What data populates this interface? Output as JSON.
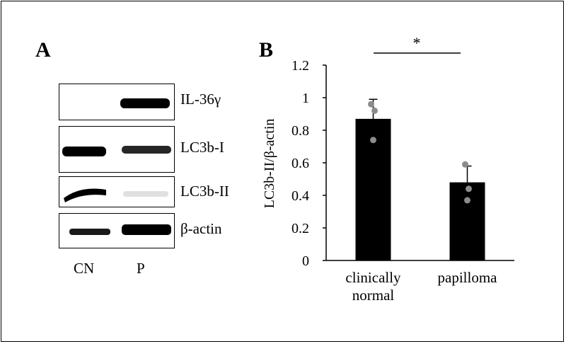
{
  "panel_a": {
    "letter": "A",
    "bands": [
      {
        "label": "IL-36γ",
        "cn_intensity": 0.0,
        "p_intensity": 1.0
      },
      {
        "label": "LC3b-I",
        "cn_intensity": 1.0,
        "p_intensity": 0.85
      },
      {
        "label": "LC3b-II",
        "cn_intensity": 1.0,
        "p_intensity": 0.12
      },
      {
        "label": "β-actin",
        "cn_intensity": 0.9,
        "p_intensity": 1.0
      }
    ],
    "lanes": [
      "CN",
      "P"
    ]
  },
  "panel_b": {
    "letter": "B",
    "significance": "*"
  },
  "chart_data": {
    "type": "bar",
    "title": "",
    "categories": [
      "clinically normal",
      "papilloma"
    ],
    "category_lines": [
      [
        "clinically",
        "normal"
      ],
      [
        "papilloma"
      ]
    ],
    "values": [
      0.87,
      0.48
    ],
    "errors": [
      0.12,
      0.1
    ],
    "points": [
      [
        0.96,
        0.92,
        0.74
      ],
      [
        0.59,
        0.44,
        0.37
      ]
    ],
    "ylabel": "LC3b-II/β-actin",
    "xlabel": "",
    "ylim": [
      0,
      1.2
    ],
    "yticks": [
      "0",
      "0.2",
      "0.4",
      "0.6",
      "0.8",
      "1",
      "1.2"
    ],
    "grid": false,
    "legend": "none",
    "bar_color": "#000000",
    "point_color": "#8c8c8c"
  }
}
